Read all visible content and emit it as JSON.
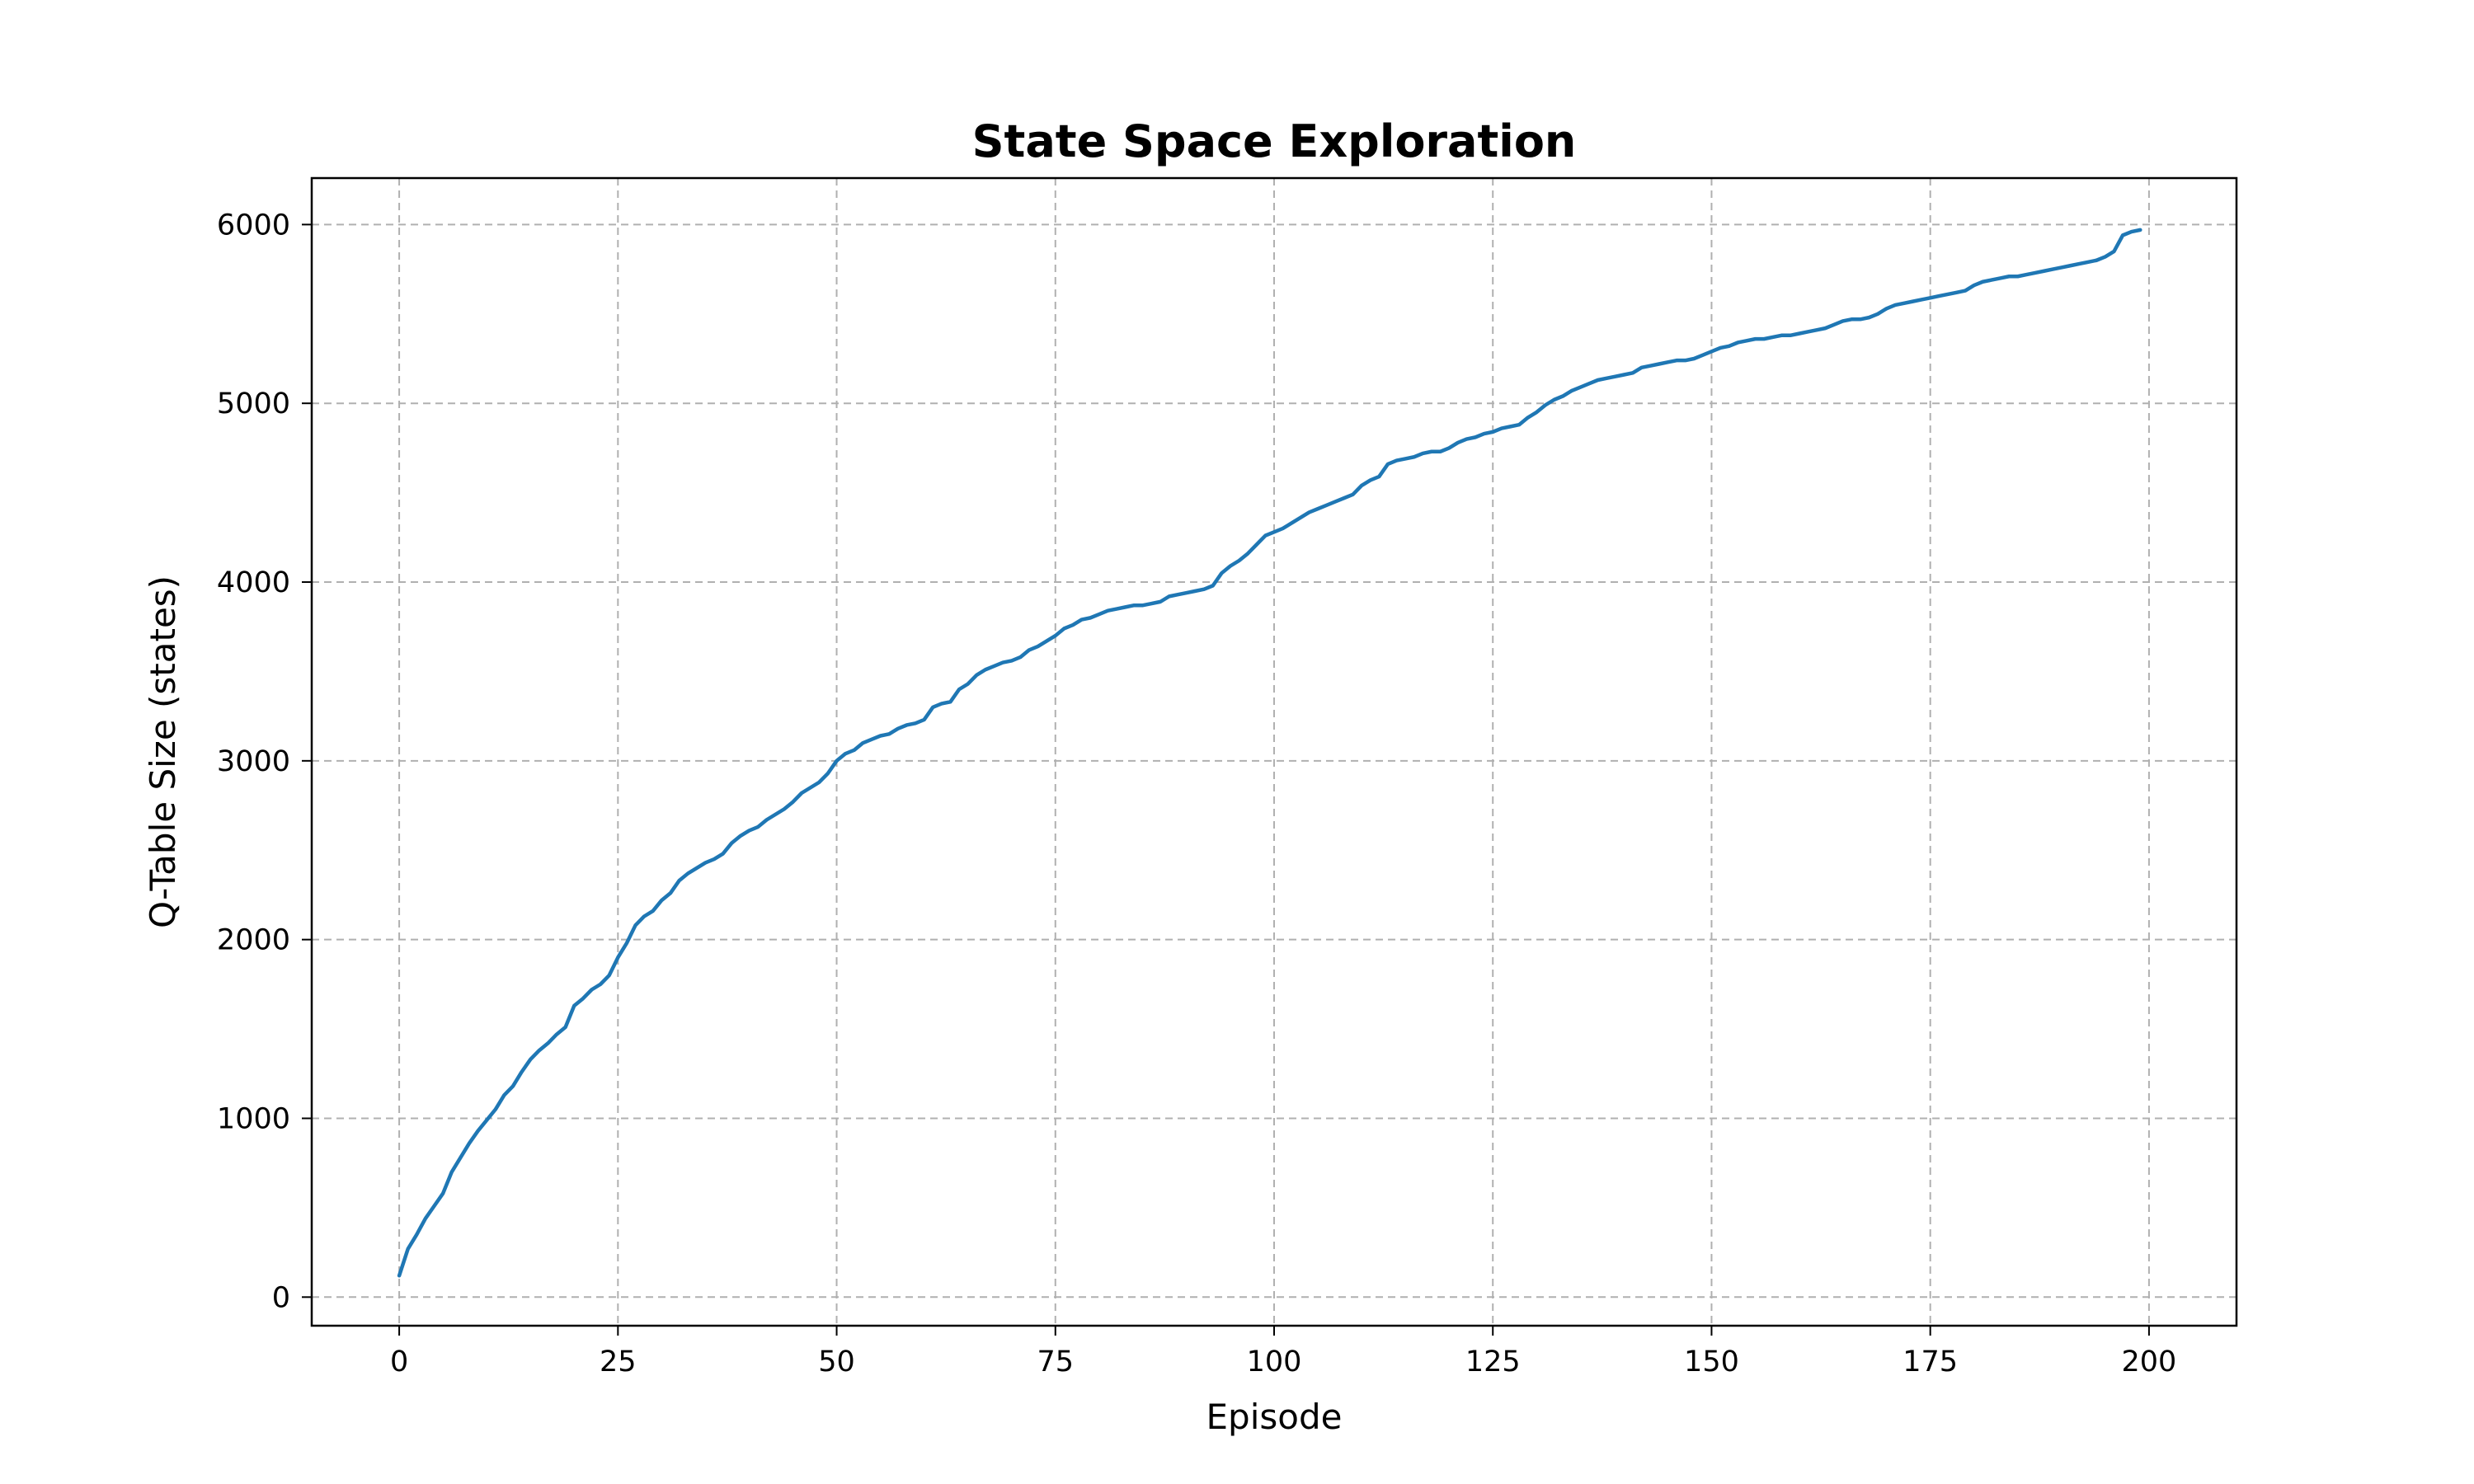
{
  "chart_data": {
    "type": "line",
    "title": "State Space Exploration",
    "xlabel": "Episode",
    "ylabel": "Q-Table Size (states)",
    "xlim": [
      -10,
      210
    ],
    "ylim": [
      -160,
      6260
    ],
    "x_ticks": [
      0,
      25,
      50,
      75,
      100,
      125,
      150,
      175,
      200
    ],
    "y_ticks": [
      0,
      1000,
      2000,
      3000,
      4000,
      5000,
      6000
    ],
    "x_tick_labels": [
      "0",
      "25",
      "50",
      "75",
      "100",
      "125",
      "150",
      "175",
      "200"
    ],
    "y_tick_labels": [
      "0",
      "1000",
      "2000",
      "3000",
      "4000",
      "5000",
      "6000"
    ],
    "grid": true,
    "legend": false,
    "series": [
      {
        "color": "#1f77b4",
        "x": [
          0,
          1,
          2,
          3,
          4,
          5,
          6,
          7,
          8,
          9,
          10,
          11,
          12,
          13,
          14,
          15,
          16,
          17,
          18,
          19,
          20,
          21,
          22,
          23,
          24,
          25,
          26,
          27,
          28,
          29,
          30,
          31,
          32,
          33,
          34,
          35,
          36,
          37,
          38,
          39,
          40,
          41,
          42,
          43,
          44,
          45,
          46,
          47,
          48,
          49,
          50,
          51,
          52,
          53,
          54,
          55,
          56,
          57,
          58,
          59,
          60,
          61,
          62,
          63,
          64,
          65,
          66,
          67,
          68,
          69,
          70,
          71,
          72,
          73,
          74,
          75,
          76,
          77,
          78,
          79,
          80,
          81,
          82,
          83,
          84,
          85,
          86,
          87,
          88,
          89,
          90,
          91,
          92,
          93,
          94,
          95,
          96,
          97,
          98,
          99,
          100,
          101,
          102,
          103,
          104,
          105,
          106,
          107,
          108,
          109,
          110,
          111,
          112,
          113,
          114,
          115,
          116,
          117,
          118,
          119,
          120,
          121,
          122,
          123,
          124,
          125,
          126,
          127,
          128,
          129,
          130,
          131,
          132,
          133,
          134,
          135,
          136,
          137,
          138,
          139,
          140,
          141,
          142,
          143,
          144,
          145,
          146,
          147,
          148,
          149,
          150,
          151,
          152,
          153,
          154,
          155,
          156,
          157,
          158,
          159,
          160,
          161,
          162,
          163,
          164,
          165,
          166,
          167,
          168,
          169,
          170,
          171,
          172,
          173,
          174,
          175,
          176,
          177,
          178,
          179,
          180,
          181,
          182,
          183,
          184,
          185,
          186,
          187,
          188,
          189,
          190,
          191,
          192,
          193,
          194,
          195,
          196,
          197,
          198,
          199
        ],
        "y": [
          120,
          270,
          350,
          440,
          510,
          580,
          700,
          780,
          860,
          930,
          990,
          1050,
          1130,
          1180,
          1260,
          1330,
          1380,
          1420,
          1470,
          1510,
          1630,
          1670,
          1720,
          1750,
          1800,
          1900,
          1980,
          2080,
          2130,
          2160,
          2220,
          2260,
          2330,
          2370,
          2400,
          2430,
          2450,
          2480,
          2540,
          2580,
          2610,
          2630,
          2670,
          2700,
          2730,
          2770,
          2820,
          2850,
          2880,
          2930,
          3000,
          3040,
          3060,
          3100,
          3120,
          3140,
          3150,
          3180,
          3200,
          3210,
          3230,
          3300,
          3320,
          3330,
          3400,
          3430,
          3480,
          3510,
          3530,
          3550,
          3560,
          3580,
          3620,
          3640,
          3670,
          3700,
          3740,
          3760,
          3790,
          3800,
          3820,
          3840,
          3850,
          3860,
          3870,
          3870,
          3880,
          3890,
          3920,
          3930,
          3940,
          3950,
          3960,
          3980,
          4050,
          4090,
          4120,
          4160,
          4210,
          4260,
          4280,
          4300,
          4330,
          4360,
          4390,
          4410,
          4430,
          4450,
          4470,
          4490,
          4540,
          4570,
          4590,
          4660,
          4680,
          4690,
          4700,
          4720,
          4730,
          4730,
          4750,
          4780,
          4800,
          4810,
          4830,
          4840,
          4860,
          4870,
          4880,
          4920,
          4950,
          4990,
          5020,
          5040,
          5070,
          5090,
          5110,
          5130,
          5140,
          5150,
          5160,
          5170,
          5200,
          5210,
          5220,
          5230,
          5240,
          5240,
          5250,
          5270,
          5290,
          5310,
          5320,
          5340,
          5350,
          5360,
          5360,
          5370,
          5380,
          5380,
          5390,
          5400,
          5410,
          5420,
          5440,
          5460,
          5470,
          5470,
          5480,
          5500,
          5530,
          5550,
          5560,
          5570,
          5580,
          5590,
          5600,
          5610,
          5620,
          5630,
          5660,
          5680,
          5690,
          5700,
          5710,
          5710,
          5720,
          5730,
          5740,
          5750,
          5760,
          5770,
          5780,
          5790,
          5800,
          5820,
          5850,
          5940,
          5960,
          5970
        ]
      }
    ]
  }
}
